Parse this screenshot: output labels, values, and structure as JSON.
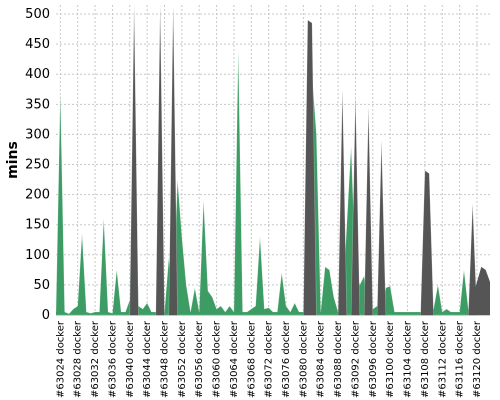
{
  "chart_data": {
    "type": "area",
    "ylabel": "mins",
    "xlabel": "",
    "title": "",
    "ylim": [
      0,
      515
    ],
    "yticks": [
      0,
      50,
      100,
      150,
      200,
      250,
      300,
      350,
      400,
      450,
      500
    ],
    "grid": true,
    "tick_labels": [
      "#63024 docker",
      "#63028 docker",
      "#63032 docker",
      "#63036 docker",
      "#63040 docker",
      "#63044 docker",
      "#63048 docker",
      "#63052 docker",
      "#63056 docker",
      "#63060 docker",
      "#63064 docker",
      "#63068 docker",
      "#63072 docker",
      "#63076 docker",
      "#63080 docker",
      "#63084 docker",
      "#63088 docker",
      "#63092 docker",
      "#63096 docker",
      "#63100 docker",
      "#63104 docker",
      "#63108 docker",
      "#63112 docker",
      "#63116 docker",
      "#63120 docker"
    ],
    "x_first": 63023,
    "x_last": 63123,
    "series": [
      {
        "color": "#3c9c64",
        "highlight": "#ffffff",
        "values": [
          5,
          370,
          5,
          2,
          10,
          15,
          135,
          5,
          3,
          5,
          5,
          160,
          5,
          3,
          75,
          5,
          5,
          25,
          400,
          15,
          10,
          20,
          5,
          5,
          5,
          5,
          95,
          15,
          225,
          130,
          50,
          5,
          45,
          5,
          190,
          40,
          30,
          10,
          15,
          5,
          15,
          5,
          440,
          5,
          5,
          10,
          15,
          130,
          10,
          12,
          5,
          5,
          70,
          15,
          5,
          20,
          5,
          5,
          5,
          400,
          300,
          5,
          80,
          75,
          30,
          5,
          5,
          150,
          280,
          80,
          50,
          65,
          5,
          10,
          15,
          5,
          45,
          48,
          5,
          5,
          5,
          5,
          5,
          5,
          5,
          5,
          5,
          10,
          50,
          5,
          10,
          5,
          5,
          5,
          75,
          10,
          5,
          5,
          5,
          5,
          5
        ]
      },
      {
        "color": "#555555",
        "highlight": "#ffffff",
        "values": [
          0,
          0,
          0,
          0,
          0,
          0,
          0,
          0,
          0,
          0,
          0,
          0,
          0,
          0,
          0,
          0,
          0,
          0,
          515,
          0,
          0,
          0,
          0,
          0,
          515,
          0,
          0,
          515,
          0,
          0,
          0,
          0,
          0,
          0,
          0,
          0,
          0,
          0,
          0,
          0,
          0,
          0,
          0,
          0,
          0,
          0,
          0,
          0,
          0,
          0,
          0,
          0,
          0,
          0,
          0,
          0,
          0,
          0,
          490,
          485,
          0,
          0,
          0,
          0,
          0,
          0,
          375,
          0,
          0,
          365,
          0,
          0,
          345,
          0,
          0,
          290,
          0,
          0,
          0,
          0,
          0,
          0,
          0,
          0,
          0,
          240,
          235,
          0,
          0,
          0,
          0,
          0,
          0,
          0,
          0,
          0,
          185,
          0,
          0,
          0,
          0
        ]
      }
    ],
    "overlay_tail": [
      {
        "x": 63119,
        "y": 30
      },
      {
        "x": 63120,
        "y": 55
      },
      {
        "x": 63121,
        "y": 80
      },
      {
        "x": 63122,
        "y": 75
      },
      {
        "x": 63123,
        "y": 55
      }
    ]
  }
}
